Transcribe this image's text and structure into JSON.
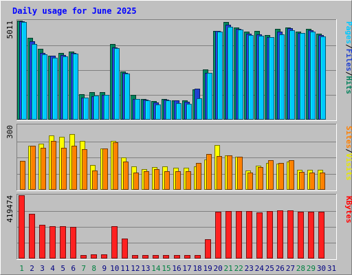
{
  "chart_data": {
    "type": "bar",
    "title": "Daily usage for June 2025",
    "days": [
      "1",
      "2",
      "3",
      "4",
      "5",
      "6",
      "7",
      "8",
      "9",
      "10",
      "11",
      "12",
      "13",
      "14",
      "15",
      "16",
      "17",
      "18",
      "19",
      "20",
      "21",
      "22",
      "23",
      "24",
      "25",
      "26",
      "27",
      "28",
      "29",
      "30",
      "31"
    ],
    "weekend_days": [
      1,
      7,
      8,
      14,
      15,
      21,
      22,
      28,
      29
    ],
    "panels": [
      {
        "id": "top",
        "max_label": "5011",
        "ymax": 5011,
        "right_labels": [
          "Pages",
          "Files",
          "Hits"
        ],
        "right_colors": [
          "#00c8ff",
          "#1f3fd0",
          "#00805a"
        ],
        "series": [
          {
            "name": "Hits",
            "color": "#00805a",
            "values": [
              5011,
              4130,
              3570,
              3250,
              3360,
              3440,
              1300,
              1390,
              1380,
              3830,
              2430,
              1270,
              1030,
              940,
              1030,
              990,
              980,
              1530,
              2530,
              4500,
              4930,
              4650,
              4450,
              4480,
              4280,
              4600,
              4680,
              4450,
              4580,
              4340,
              null
            ]
          },
          {
            "name": "Files",
            "color": "#1f3fd0",
            "values": [
              4960,
              3960,
              3360,
              3230,
              3280,
              3360,
              1110,
              1200,
              1240,
              3650,
              2360,
              1050,
              1000,
              880,
              1010,
              960,
              920,
              1550,
              2370,
              4500,
              4810,
              4600,
              4340,
              4300,
              4190,
              4450,
              4620,
              4390,
              4520,
              4290,
              null
            ]
          },
          {
            "name": "Pages",
            "color": "#00c8ff",
            "values": [
              4950,
              3820,
              3290,
              3140,
              3200,
              3340,
              1110,
              1220,
              1270,
              3620,
              2330,
              1040,
              970,
              780,
              990,
              850,
              790,
              1080,
              2350,
              4440,
              4700,
              4560,
              4270,
              4240,
              4170,
              4300,
              4530,
              4370,
              4470,
              4200,
              null
            ]
          }
        ]
      },
      {
        "id": "middle",
        "max_label": "300",
        "ymax": 300,
        "right_labels": [
          "Sites",
          "Visits"
        ],
        "right_colors": [
          "#ff8000",
          "#e8e800"
        ],
        "series": [
          {
            "name": "Visits",
            "color": "#ffff00",
            "values": [
              null,
              204,
              213,
              253,
              247,
              260,
              225,
              114,
              192,
              228,
              149,
              108,
              96,
              104,
              109,
              101,
              103,
              110,
              142,
              206,
              159,
              153,
              89,
              112,
              124,
              120,
              130,
              94,
              94,
              94,
              null
            ]
          },
          {
            "name": "Sites",
            "color": "#ff8000",
            "values": [
              134,
              205,
              196,
              227,
              196,
              205,
              189,
              90,
              193,
              219,
              130,
              81,
              85,
              96,
              86,
              85,
              86,
              126,
              166,
              155,
              159,
              153,
              80,
              105,
              136,
              124,
              137,
              84,
              80,
              81,
              null
            ]
          }
        ]
      },
      {
        "id": "bottom",
        "max_label": "419474",
        "ymax": 419474,
        "right_labels": [
          "KBytes"
        ],
        "right_colors": [
          "#ff0000"
        ],
        "series": [
          {
            "name": "KBytes",
            "color": "#ff2020",
            "values": [
              419474,
              295000,
              225000,
              216000,
              213000,
              212000,
              22000,
              26000,
              27000,
              216000,
              133000,
              23000,
              23000,
              23000,
              23000,
              23000,
              23000,
              25000,
              128000,
              309000,
              314000,
              316000,
              314000,
              305000,
              313000,
              320000,
              318000,
              308000,
              309000,
              308000,
              null
            ]
          }
        ]
      }
    ]
  },
  "colors": {
    "background": "#c0c0c0",
    "title": "#0000ff",
    "weekend_label": "#008040",
    "weekday_label": "#000080"
  }
}
